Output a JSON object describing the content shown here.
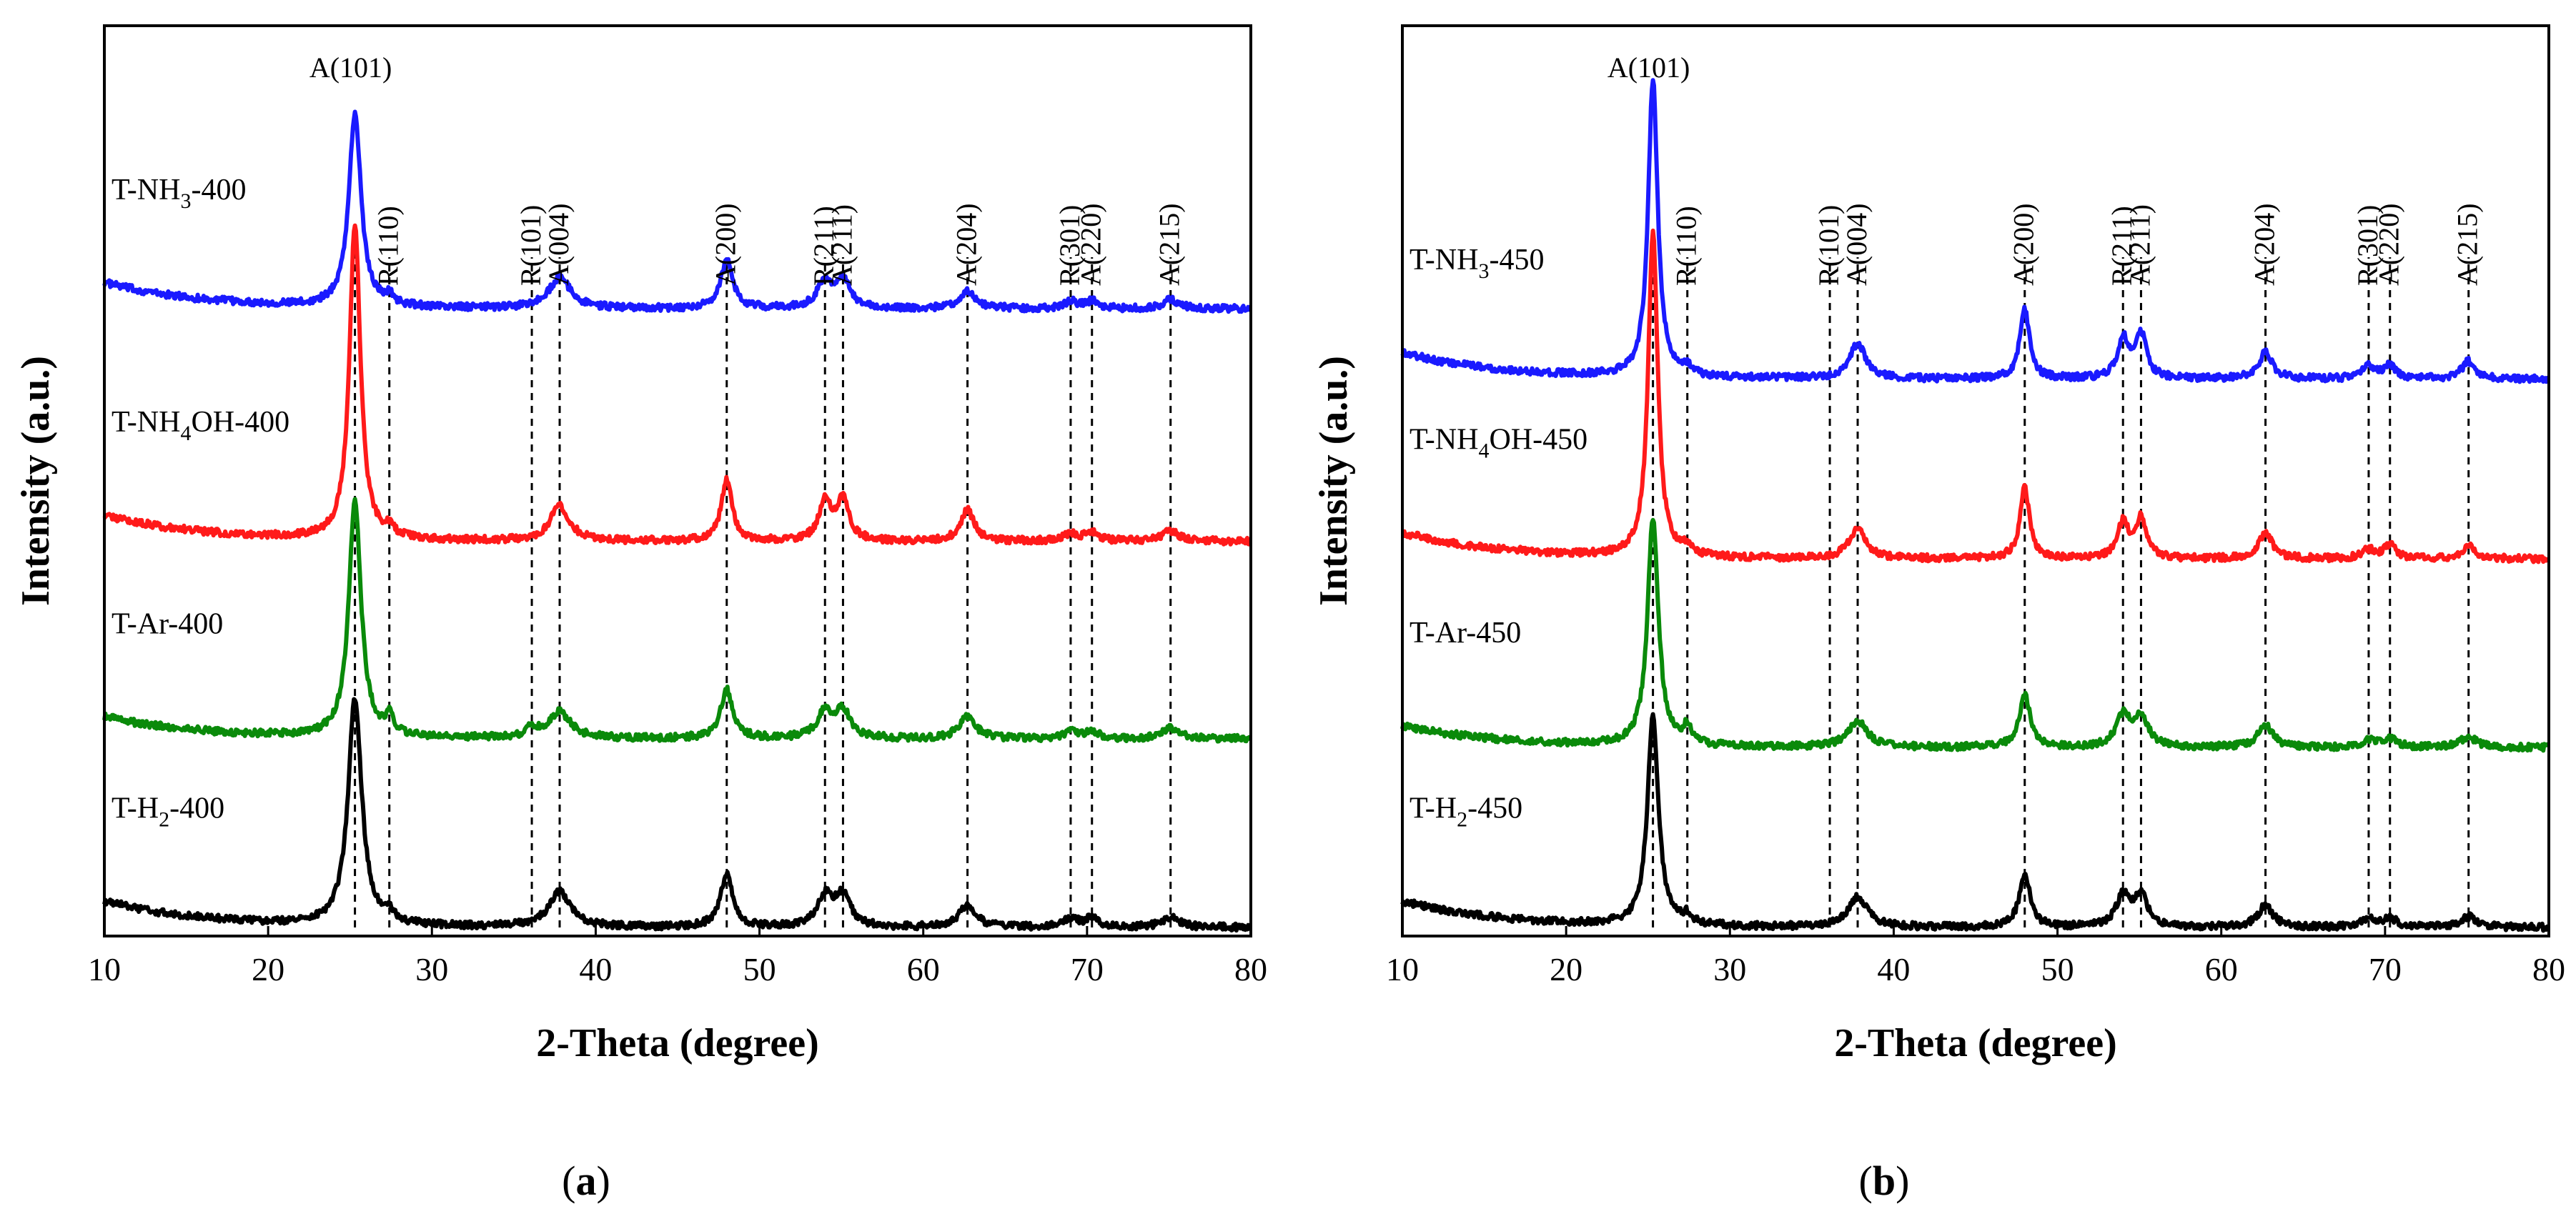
{
  "chart_data": [
    {
      "type": "line",
      "panel_label": {
        "open": "(",
        "letter": "a",
        "close": ")"
      },
      "xlabel": "2-Theta (degree)",
      "ylabel": "Intensity (a.u.)",
      "xlim": [
        10,
        80
      ],
      "xticks": [
        "10",
        "20",
        "30",
        "40",
        "50",
        "60",
        "70",
        "80"
      ],
      "reference_lines": [
        25.3,
        27.4,
        36.1,
        37.8,
        48.0,
        54.0,
        55.1,
        62.7,
        69.0,
        70.3,
        75.1
      ],
      "peak_annotations": [
        {
          "label": "A(101)",
          "x": 25.3,
          "orientation": "horizontal"
        },
        {
          "label": "R(110)",
          "x": 27.4,
          "orientation": "vertical"
        },
        {
          "label": "R(101)",
          "x": 36.1,
          "orientation": "vertical"
        },
        {
          "label": "A(004)",
          "x": 37.8,
          "orientation": "vertical"
        },
        {
          "label": "A(200)",
          "x": 48.0,
          "orientation": "vertical"
        },
        {
          "label": "R(211)",
          "x": 54.0,
          "orientation": "vertical"
        },
        {
          "label": "A(211)",
          "x": 55.1,
          "orientation": "vertical"
        },
        {
          "label": "A(204)",
          "x": 62.7,
          "orientation": "vertical"
        },
        {
          "label": "R(301)",
          "x": 69.0,
          "orientation": "vertical"
        },
        {
          "label": "A(220)",
          "x": 70.3,
          "orientation": "vertical"
        },
        {
          "label": "A(215)",
          "x": 75.1,
          "orientation": "vertical"
        }
      ],
      "series": [
        {
          "name": "T-NH3-400",
          "label_main": "T-NH",
          "label_sub": "3",
          "label_tail": "-400",
          "color": "#1a1aff",
          "baseline": 0.705,
          "slope": 0.03,
          "peaks": [
            [
              25.3,
              0.22,
              0.45
            ],
            [
              27.4,
              0.01,
              0.3
            ],
            [
              37.8,
              0.035,
              0.8
            ],
            [
              48.0,
              0.055,
              0.45
            ],
            [
              54.0,
              0.03,
              0.55
            ],
            [
              55.1,
              0.03,
              0.55
            ],
            [
              62.7,
              0.02,
              0.6
            ],
            [
              69.0,
              0.008,
              0.5
            ],
            [
              70.3,
              0.008,
              0.5
            ],
            [
              75.1,
              0.01,
              0.6
            ]
          ]
        },
        {
          "name": "T-NH4OH-400",
          "label_main": "T-NH",
          "label_sub": "4",
          "label_tail": "OH-400",
          "color": "#ff1a1a",
          "baseline": 0.44,
          "slope": 0.03,
          "peaks": [
            [
              25.3,
              0.36,
              0.4
            ],
            [
              27.4,
              0.01,
              0.3
            ],
            [
              37.8,
              0.04,
              0.7
            ],
            [
              48.0,
              0.07,
              0.4
            ],
            [
              54.0,
              0.045,
              0.45
            ],
            [
              55.1,
              0.045,
              0.45
            ],
            [
              62.7,
              0.035,
              0.5
            ],
            [
              69.0,
              0.008,
              0.5
            ],
            [
              70.3,
              0.01,
              0.5
            ],
            [
              75.1,
              0.012,
              0.6
            ]
          ]
        },
        {
          "name": "T-Ar-400",
          "label_main": "T-Ar-400",
          "label_sub": "",
          "label_tail": "",
          "color": "#0a8a0a",
          "baseline": 0.215,
          "slope": 0.025,
          "peaks": [
            [
              25.3,
              0.27,
              0.45
            ],
            [
              27.4,
              0.02,
              0.3
            ],
            [
              36.1,
              0.01,
              0.4
            ],
            [
              37.8,
              0.03,
              0.8
            ],
            [
              48.0,
              0.055,
              0.45
            ],
            [
              54.0,
              0.03,
              0.55
            ],
            [
              55.1,
              0.03,
              0.55
            ],
            [
              62.7,
              0.025,
              0.6
            ],
            [
              69.0,
              0.008,
              0.5
            ],
            [
              70.3,
              0.008,
              0.5
            ],
            [
              75.1,
              0.012,
              0.6
            ]
          ]
        },
        {
          "name": "T-H2-400",
          "label_main": "T-H",
          "label_sub": "2",
          "label_tail": "-400",
          "color": "#000000",
          "baseline": 0.0,
          "slope": 0.03,
          "peaks": [
            [
              25.3,
              0.26,
              0.5
            ],
            [
              27.4,
              0.01,
              0.3
            ],
            [
              37.8,
              0.04,
              0.8
            ],
            [
              48.0,
              0.06,
              0.45
            ],
            [
              54.0,
              0.035,
              0.55
            ],
            [
              55.1,
              0.035,
              0.55
            ],
            [
              62.7,
              0.025,
              0.6
            ],
            [
              69.0,
              0.01,
              0.5
            ],
            [
              70.3,
              0.01,
              0.5
            ],
            [
              75.1,
              0.012,
              0.6
            ]
          ]
        }
      ]
    },
    {
      "type": "line",
      "panel_label": {
        "open": "(",
        "letter": "b",
        "close": ")"
      },
      "xlabel": "2-Theta (degree)",
      "ylabel": "Intensity (a.u.)",
      "xlim": [
        10,
        80
      ],
      "xticks": [
        "10",
        "20",
        "30",
        "40",
        "50",
        "60",
        "70",
        "80"
      ],
      "reference_lines": [
        25.3,
        27.4,
        36.1,
        37.8,
        48.0,
        54.0,
        55.1,
        62.7,
        69.0,
        70.3,
        75.1
      ],
      "peak_annotations": [
        {
          "label": "A(101)",
          "x": 25.3,
          "orientation": "horizontal"
        },
        {
          "label": "R(110)",
          "x": 27.4,
          "orientation": "vertical"
        },
        {
          "label": "R(101)",
          "x": 36.1,
          "orientation": "vertical"
        },
        {
          "label": "A(004)",
          "x": 37.8,
          "orientation": "vertical"
        },
        {
          "label": "A(200)",
          "x": 48.0,
          "orientation": "vertical"
        },
        {
          "label": "R(211)",
          "x": 54.0,
          "orientation": "vertical"
        },
        {
          "label": "A(211)",
          "x": 55.1,
          "orientation": "vertical"
        },
        {
          "label": "A(204)",
          "x": 62.7,
          "orientation": "vertical"
        },
        {
          "label": "R(301)",
          "x": 69.0,
          "orientation": "vertical"
        },
        {
          "label": "A(220)",
          "x": 70.3,
          "orientation": "vertical"
        },
        {
          "label": "A(215)",
          "x": 75.1,
          "orientation": "vertical"
        }
      ],
      "series": [
        {
          "name": "T-NH3-450",
          "label_main": "T-NH",
          "label_sub": "3",
          "label_tail": "-450",
          "color": "#1a1aff",
          "baseline": 0.625,
          "slope": 0.03,
          "peaks": [
            [
              25.3,
              0.34,
              0.35
            ],
            [
              27.4,
              0.01,
              0.3
            ],
            [
              37.8,
              0.04,
              0.6
            ],
            [
              48.0,
              0.08,
              0.35
            ],
            [
              54.0,
              0.045,
              0.4
            ],
            [
              55.1,
              0.05,
              0.4
            ],
            [
              62.7,
              0.03,
              0.5
            ],
            [
              69.0,
              0.015,
              0.45
            ],
            [
              70.3,
              0.015,
              0.45
            ],
            [
              75.1,
              0.02,
              0.5
            ]
          ]
        },
        {
          "name": "T-NH4OH-450",
          "label_main": "T-NH",
          "label_sub": "4",
          "label_tail": "OH-450",
          "color": "#ff1a1a",
          "baseline": 0.42,
          "slope": 0.03,
          "peaks": [
            [
              25.3,
              0.37,
              0.35
            ],
            [
              27.4,
              0.01,
              0.3
            ],
            [
              37.8,
              0.035,
              0.6
            ],
            [
              48.0,
              0.08,
              0.35
            ],
            [
              54.0,
              0.04,
              0.4
            ],
            [
              55.1,
              0.045,
              0.4
            ],
            [
              62.7,
              0.03,
              0.5
            ],
            [
              69.0,
              0.01,
              0.45
            ],
            [
              70.3,
              0.015,
              0.45
            ],
            [
              75.1,
              0.015,
              0.5
            ]
          ]
        },
        {
          "name": "T-Ar-450",
          "label_main": "T-Ar-450",
          "label_sub": "",
          "label_tail": "",
          "color": "#0a8a0a",
          "baseline": 0.205,
          "slope": 0.025,
          "peaks": [
            [
              25.3,
              0.26,
              0.4
            ],
            [
              27.4,
              0.02,
              0.3
            ],
            [
              37.8,
              0.03,
              0.7
            ],
            [
              48.0,
              0.06,
              0.4
            ],
            [
              54.0,
              0.035,
              0.5
            ],
            [
              55.1,
              0.035,
              0.5
            ],
            [
              62.7,
              0.025,
              0.55
            ],
            [
              69.0,
              0.008,
              0.5
            ],
            [
              70.3,
              0.01,
              0.5
            ],
            [
              75.1,
              0.012,
              0.6
            ]
          ]
        },
        {
          "name": "T-H2-450",
          "label_main": "T-H",
          "label_sub": "2",
          "label_tail": "-450",
          "color": "#000000",
          "baseline": 0.0,
          "slope": 0.03,
          "peaks": [
            [
              25.3,
              0.24,
              0.4
            ],
            [
              27.4,
              0.01,
              0.3
            ],
            [
              37.8,
              0.035,
              0.7
            ],
            [
              48.0,
              0.06,
              0.4
            ],
            [
              54.0,
              0.035,
              0.5
            ],
            [
              55.1,
              0.035,
              0.5
            ],
            [
              62.7,
              0.025,
              0.55
            ],
            [
              69.0,
              0.01,
              0.5
            ],
            [
              70.3,
              0.01,
              0.5
            ],
            [
              75.1,
              0.012,
              0.6
            ]
          ]
        }
      ]
    }
  ]
}
